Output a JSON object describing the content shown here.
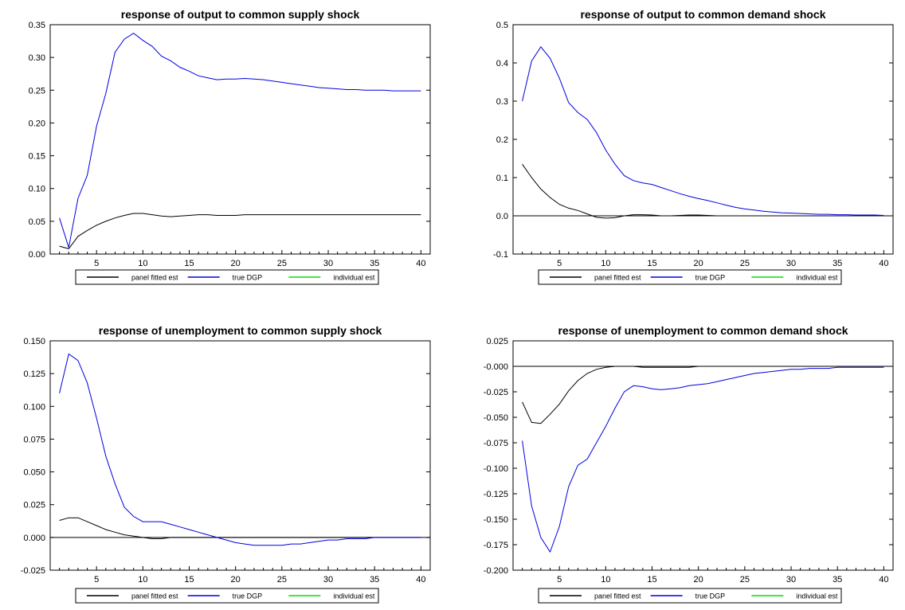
{
  "chart_data": [
    {
      "type": "line",
      "title": "response of output to common supply shock",
      "xlabel": "",
      "ylabel": "",
      "xlim": [
        0,
        41
      ],
      "ylim": [
        0,
        0.35
      ],
      "xticks": [
        5,
        10,
        15,
        20,
        25,
        30,
        35,
        40
      ],
      "yticks": [
        0,
        0.05,
        0.1,
        0.15,
        0.2,
        0.25,
        0.3,
        0.35
      ],
      "ytick_labels": [
        "0.00",
        "0.05",
        "0.10",
        "0.15",
        "0.20",
        "0.25",
        "0.30",
        "0.35"
      ],
      "zero_line": false,
      "legend_position": "bottom",
      "series": [
        {
          "name": "panel fitted est",
          "color": "#000000",
          "x": [
            1,
            2,
            3,
            4,
            5,
            6,
            7,
            8,
            9,
            10,
            11,
            12,
            13,
            14,
            15,
            16,
            17,
            18,
            19,
            20,
            21,
            22,
            23,
            24,
            25,
            26,
            27,
            28,
            29,
            30,
            31,
            32,
            33,
            34,
            35,
            36,
            37,
            38,
            39,
            40
          ],
          "y": [
            0.012,
            0.008,
            0.027,
            0.036,
            0.044,
            0.05,
            0.055,
            0.059,
            0.062,
            0.062,
            0.06,
            0.058,
            0.057,
            0.058,
            0.059,
            0.06,
            0.06,
            0.059,
            0.059,
            0.059,
            0.06,
            0.06,
            0.06,
            0.06,
            0.06,
            0.06,
            0.06,
            0.06,
            0.06,
            0.06,
            0.06,
            0.06,
            0.06,
            0.06,
            0.06,
            0.06,
            0.06,
            0.06,
            0.06,
            0.06
          ]
        },
        {
          "name": "true DGP",
          "color": "#0000e0",
          "x": [
            1,
            2,
            3,
            4,
            5,
            6,
            7,
            8,
            9,
            10,
            11,
            12,
            13,
            14,
            15,
            16,
            17,
            18,
            19,
            20,
            21,
            22,
            23,
            24,
            25,
            26,
            27,
            28,
            29,
            30,
            31,
            32,
            33,
            34,
            35,
            36,
            37,
            38,
            39,
            40
          ],
          "y": [
            0.055,
            0.01,
            0.085,
            0.12,
            0.195,
            0.245,
            0.308,
            0.328,
            0.337,
            0.326,
            0.317,
            0.302,
            0.295,
            0.285,
            0.279,
            0.272,
            0.269,
            0.266,
            0.267,
            0.267,
            0.268,
            0.267,
            0.266,
            0.264,
            0.262,
            0.26,
            0.258,
            0.256,
            0.254,
            0.253,
            0.252,
            0.251,
            0.251,
            0.25,
            0.25,
            0.25,
            0.249,
            0.249,
            0.249,
            0.249
          ]
        },
        {
          "name": "individual est",
          "color": "#00e000",
          "x": [],
          "y": []
        }
      ]
    },
    {
      "type": "line",
      "title": "response of output to common demand shock",
      "xlabel": "",
      "ylabel": "",
      "xlim": [
        0,
        41
      ],
      "ylim": [
        -0.1,
        0.5
      ],
      "xticks": [
        5,
        10,
        15,
        20,
        25,
        30,
        35,
        40
      ],
      "yticks": [
        -0.1,
        0,
        0.1,
        0.2,
        0.3,
        0.4,
        0.5
      ],
      "ytick_labels": [
        "-0.1",
        "0.0",
        "0.1",
        "0.2",
        "0.3",
        "0.4",
        "0.5"
      ],
      "zero_line": true,
      "legend_position": "bottom",
      "series": [
        {
          "name": "panel fitted est",
          "color": "#000000",
          "x": [
            1,
            2,
            3,
            4,
            5,
            6,
            7,
            8,
            9,
            10,
            11,
            12,
            13,
            14,
            15,
            16,
            17,
            18,
            19,
            20,
            21,
            22,
            23,
            24,
            25,
            26,
            27,
            28,
            29,
            30,
            31,
            32,
            33,
            34,
            35,
            36,
            37,
            38,
            39,
            40
          ],
          "y": [
            0.135,
            0.1,
            0.07,
            0.048,
            0.03,
            0.02,
            0.014,
            0.005,
            -0.004,
            -0.006,
            -0.005,
            0.0,
            0.003,
            0.003,
            0.002,
            0.0,
            0.0,
            0.001,
            0.002,
            0.002,
            0.001,
            0.0,
            0.0,
            0.0,
            0.0,
            0.0,
            0.0,
            0.0,
            0.0,
            0.0,
            0.0,
            0.0,
            0.0,
            0.0,
            0.0,
            0.0,
            0.0,
            0.0,
            0.0,
            0.0
          ]
        },
        {
          "name": "true DGP",
          "color": "#0000e0",
          "x": [
            1,
            2,
            3,
            4,
            5,
            6,
            7,
            8,
            9,
            10,
            11,
            12,
            13,
            14,
            15,
            16,
            17,
            18,
            19,
            20,
            21,
            22,
            23,
            24,
            25,
            26,
            27,
            28,
            29,
            30,
            31,
            32,
            33,
            34,
            35,
            36,
            37,
            38,
            39,
            40
          ],
          "y": [
            0.3,
            0.405,
            0.442,
            0.412,
            0.36,
            0.296,
            0.27,
            0.252,
            0.218,
            0.172,
            0.135,
            0.105,
            0.092,
            0.086,
            0.082,
            0.074,
            0.066,
            0.058,
            0.051,
            0.045,
            0.04,
            0.034,
            0.028,
            0.022,
            0.018,
            0.015,
            0.012,
            0.01,
            0.008,
            0.007,
            0.006,
            0.005,
            0.004,
            0.004,
            0.003,
            0.003,
            0.002,
            0.002,
            0.002,
            0.001
          ]
        },
        {
          "name": "individual est",
          "color": "#00e000",
          "x": [],
          "y": []
        }
      ]
    },
    {
      "type": "line",
      "title": "response of unemployment to common supply shock",
      "xlabel": "",
      "ylabel": "",
      "xlim": [
        0,
        41
      ],
      "ylim": [
        -0.025,
        0.15
      ],
      "xticks": [
        5,
        10,
        15,
        20,
        25,
        30,
        35,
        40
      ],
      "yticks": [
        -0.025,
        0,
        0.025,
        0.05,
        0.075,
        0.1,
        0.125,
        0.15
      ],
      "ytick_labels": [
        "-0.025",
        "0.000",
        "0.025",
        "0.050",
        "0.075",
        "0.100",
        "0.125",
        "0.150"
      ],
      "zero_line": true,
      "legend_position": "bottom",
      "series": [
        {
          "name": "panel fitted est",
          "color": "#000000",
          "x": [
            1,
            2,
            3,
            4,
            5,
            6,
            7,
            8,
            9,
            10,
            11,
            12,
            13,
            14,
            15,
            16,
            17,
            18,
            19,
            20,
            21,
            22,
            23,
            24,
            25,
            26,
            27,
            28,
            29,
            30,
            31,
            32,
            33,
            34,
            35,
            36,
            37,
            38,
            39,
            40
          ],
          "y": [
            0.013,
            0.015,
            0.015,
            0.012,
            0.009,
            0.006,
            0.004,
            0.002,
            0.001,
            0.0,
            -0.001,
            -0.001,
            0.0,
            0.0,
            0.0,
            0.0,
            0.0,
            0.0,
            0.0,
            0.0,
            0.0,
            0.0,
            0.0,
            0.0,
            0.0,
            0.0,
            0.0,
            0.0,
            0.0,
            0.0,
            0.0,
            0.0,
            0.0,
            0.0,
            0.0,
            0.0,
            0.0,
            0.0,
            0.0,
            0.0
          ]
        },
        {
          "name": "true DGP",
          "color": "#0000e0",
          "x": [
            1,
            2,
            3,
            4,
            5,
            6,
            7,
            8,
            9,
            10,
            11,
            12,
            13,
            14,
            15,
            16,
            17,
            18,
            19,
            20,
            21,
            22,
            23,
            24,
            25,
            26,
            27,
            28,
            29,
            30,
            31,
            32,
            33,
            34,
            35,
            36,
            37,
            38,
            39,
            40
          ],
          "y": [
            0.11,
            0.14,
            0.135,
            0.118,
            0.091,
            0.062,
            0.041,
            0.023,
            0.016,
            0.012,
            0.012,
            0.012,
            0.01,
            0.008,
            0.006,
            0.004,
            0.002,
            0.0,
            -0.002,
            -0.004,
            -0.005,
            -0.006,
            -0.006,
            -0.006,
            -0.006,
            -0.005,
            -0.005,
            -0.004,
            -0.003,
            -0.002,
            -0.002,
            -0.001,
            -0.001,
            -0.001,
            0.0,
            0.0,
            0.0,
            0.0,
            0.0,
            0.0
          ]
        },
        {
          "name": "individual est",
          "color": "#00e000",
          "x": [],
          "y": []
        }
      ]
    },
    {
      "type": "line",
      "title": "response of unemployment to common demand shock",
      "xlabel": "",
      "ylabel": "",
      "xlim": [
        0,
        41
      ],
      "ylim": [
        -0.2,
        0.025
      ],
      "xticks": [
        5,
        10,
        15,
        20,
        25,
        30,
        35,
        40
      ],
      "yticks": [
        -0.2,
        -0.175,
        -0.15,
        -0.125,
        -0.1,
        -0.075,
        -0.05,
        -0.025,
        0,
        0.025
      ],
      "ytick_labels": [
        "-0.200",
        "-0.175",
        "-0.150",
        "-0.125",
        "-0.100",
        "-0.075",
        "-0.050",
        "-0.025",
        "-0.000",
        "0.025"
      ],
      "zero_line": true,
      "legend_position": "bottom",
      "series": [
        {
          "name": "panel fitted est",
          "color": "#000000",
          "x": [
            1,
            2,
            3,
            4,
            5,
            6,
            7,
            8,
            9,
            10,
            11,
            12,
            13,
            14,
            15,
            16,
            17,
            18,
            19,
            20,
            21,
            22,
            23,
            24,
            25,
            26,
            27,
            28,
            29,
            30,
            31,
            32,
            33,
            34,
            35,
            36,
            37,
            38,
            39,
            40
          ],
          "y": [
            -0.035,
            -0.055,
            -0.056,
            -0.047,
            -0.037,
            -0.024,
            -0.014,
            -0.007,
            -0.003,
            -0.001,
            0.0,
            0.0,
            0.0,
            -0.001,
            -0.001,
            -0.001,
            -0.001,
            -0.001,
            -0.001,
            0.0,
            0.0,
            0.0,
            0.0,
            0.0,
            0.0,
            0.0,
            0.0,
            0.0,
            0.0,
            0.0,
            0.0,
            0.0,
            0.0,
            0.0,
            0.0,
            0.0,
            0.0,
            0.0,
            0.0,
            0.0
          ]
        },
        {
          "name": "true DGP",
          "color": "#0000e0",
          "x": [
            1,
            2,
            3,
            4,
            5,
            6,
            7,
            8,
            9,
            10,
            11,
            12,
            13,
            14,
            15,
            16,
            17,
            18,
            19,
            20,
            21,
            22,
            23,
            24,
            25,
            26,
            27,
            28,
            29,
            30,
            31,
            32,
            33,
            34,
            35,
            36,
            37,
            38,
            39,
            40
          ],
          "y": [
            -0.073,
            -0.137,
            -0.168,
            -0.182,
            -0.157,
            -0.118,
            -0.097,
            -0.091,
            -0.075,
            -0.059,
            -0.041,
            -0.025,
            -0.019,
            -0.02,
            -0.022,
            -0.023,
            -0.022,
            -0.021,
            -0.019,
            -0.018,
            -0.017,
            -0.015,
            -0.013,
            -0.011,
            -0.009,
            -0.007,
            -0.006,
            -0.005,
            -0.004,
            -0.003,
            -0.003,
            -0.002,
            -0.002,
            -0.002,
            -0.001,
            -0.001,
            -0.001,
            -0.001,
            -0.001,
            -0.001
          ]
        },
        {
          "name": "individual est",
          "color": "#00e000",
          "x": [],
          "y": []
        }
      ]
    }
  ]
}
